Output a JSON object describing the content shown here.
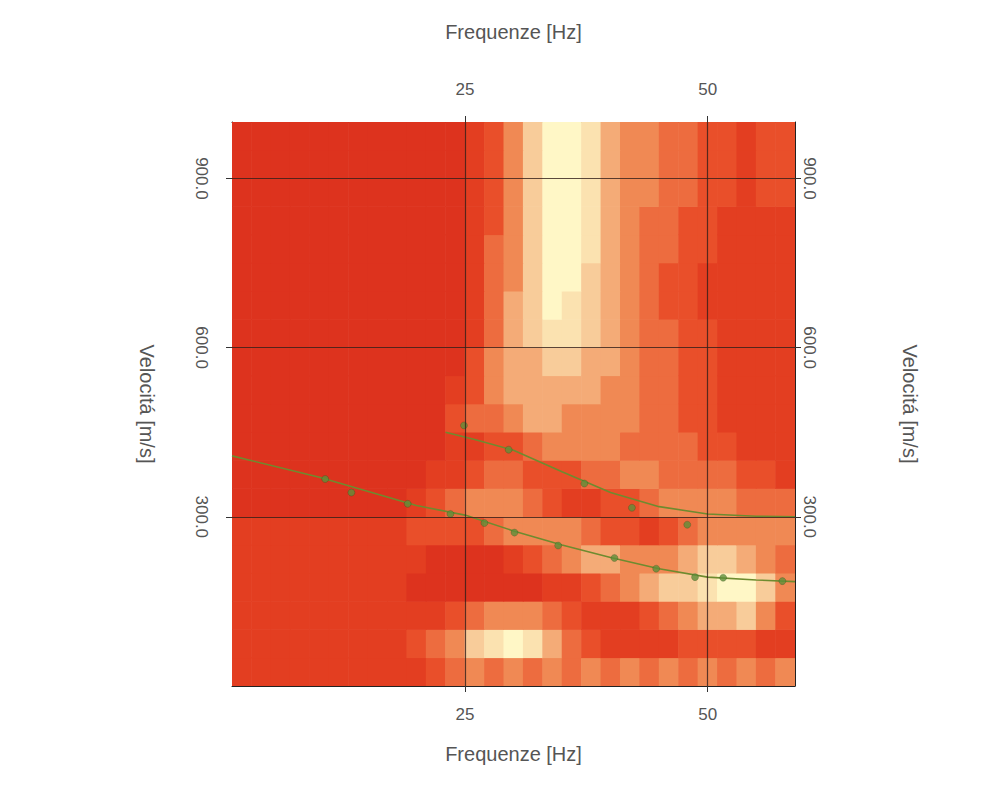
{
  "chart_data": {
    "type": "heatmap",
    "x_label": "Frequenze [Hz]",
    "y_label": "Velocitá [m/s]",
    "xlim": [
      1,
      59
    ],
    "ylim": [
      0,
      1000
    ],
    "xticks": [
      25,
      50
    ],
    "yticks": [
      {
        "value": 300,
        "label": "300.0"
      },
      {
        "value": 600,
        "label": "600.0"
      },
      {
        "value": 900,
        "label": "900.0"
      }
    ],
    "grid": true,
    "heatmap": {
      "x_edges": [
        1,
        3,
        5,
        7,
        9,
        11,
        13,
        15,
        17,
        19,
        21,
        23,
        25,
        27,
        29,
        31,
        33,
        35,
        37,
        39,
        41,
        43,
        45,
        47,
        49,
        51,
        53,
        55,
        57,
        59
      ],
      "y_edges": [
        0,
        50,
        100,
        150,
        200,
        250,
        300,
        350,
        400,
        450,
        500,
        550,
        600,
        650,
        700,
        750,
        800,
        850,
        900,
        950,
        1000
      ],
      "zlim": [
        0,
        9
      ],
      "cells": [
        [
          2,
          2,
          2,
          2,
          2,
          2,
          2,
          2,
          2,
          2,
          3,
          4,
          5,
          4,
          5,
          4,
          5,
          4,
          5,
          4,
          5,
          4,
          5,
          4,
          5,
          4,
          5,
          4,
          5
        ],
        [
          2,
          2,
          2,
          2,
          2,
          2,
          2,
          2,
          2,
          3,
          4,
          5,
          7,
          8,
          9,
          8,
          6,
          4,
          3,
          2,
          2,
          2,
          2,
          3,
          3,
          3,
          3,
          2,
          2
        ],
        [
          2,
          2,
          2,
          2,
          2,
          2,
          2,
          2,
          2,
          2,
          2,
          3,
          4,
          5,
          5,
          5,
          4,
          3,
          2,
          2,
          2,
          3,
          4,
          5,
          6,
          6,
          7,
          5,
          3
        ],
        [
          2,
          2,
          2,
          2,
          2,
          2,
          2,
          2,
          2,
          1,
          1,
          1,
          1,
          1,
          1,
          1,
          2,
          2,
          3,
          4,
          5,
          6,
          7,
          7,
          8,
          9,
          9,
          7,
          5
        ],
        [
          2,
          2,
          2,
          2,
          2,
          2,
          2,
          2,
          2,
          2,
          1,
          1,
          1,
          1,
          2,
          3,
          4,
          5,
          6,
          6,
          5,
          5,
          5,
          6,
          7,
          7,
          6,
          5,
          4
        ],
        [
          2,
          2,
          2,
          2,
          2,
          2,
          2,
          2,
          2,
          3,
          3,
          3,
          3,
          4,
          5,
          5,
          5,
          5,
          4,
          3,
          3,
          2,
          3,
          4,
          5,
          5,
          5,
          5,
          5
        ],
        [
          1,
          1,
          1,
          1,
          1,
          1,
          1,
          1,
          1,
          2,
          3,
          4,
          5,
          5,
          5,
          4,
          3,
          2,
          2,
          3,
          3,
          4,
          5,
          5,
          5,
          5,
          4,
          4,
          4
        ],
        [
          1,
          1,
          1,
          1,
          1,
          1,
          1,
          1,
          1,
          1,
          2,
          2,
          3,
          4,
          4,
          3,
          3,
          3,
          4,
          4,
          5,
          5,
          4,
          4,
          4,
          4,
          3,
          3,
          2
        ],
        [
          1,
          1,
          1,
          1,
          1,
          1,
          1,
          1,
          1,
          1,
          1,
          2,
          2,
          3,
          3,
          4,
          5,
          5,
          5,
          5,
          4,
          4,
          4,
          4,
          3,
          3,
          2,
          2,
          2
        ],
        [
          1,
          1,
          1,
          1,
          1,
          1,
          1,
          1,
          1,
          1,
          1,
          3,
          4,
          4,
          5,
          6,
          6,
          5,
          5,
          5,
          5,
          4,
          4,
          3,
          3,
          2,
          2,
          2,
          2
        ],
        [
          1,
          1,
          1,
          1,
          1,
          1,
          1,
          1,
          1,
          1,
          1,
          2,
          3,
          5,
          6,
          6,
          6,
          6,
          6,
          5,
          5,
          4,
          4,
          3,
          3,
          2,
          2,
          2,
          2
        ],
        [
          1,
          1,
          1,
          1,
          1,
          1,
          1,
          1,
          1,
          1,
          1,
          1,
          3,
          5,
          6,
          6,
          7,
          7,
          6,
          6,
          5,
          4,
          4,
          3,
          3,
          2,
          2,
          2,
          2
        ],
        [
          1,
          1,
          1,
          1,
          1,
          1,
          1,
          1,
          1,
          1,
          1,
          1,
          2,
          4,
          6,
          7,
          8,
          8,
          7,
          6,
          5,
          4,
          4,
          3,
          3,
          2,
          2,
          2,
          2
        ],
        [
          1,
          1,
          1,
          1,
          1,
          1,
          1,
          1,
          1,
          1,
          1,
          1,
          2,
          4,
          6,
          7,
          9,
          8,
          7,
          6,
          5,
          4,
          3,
          3,
          2,
          2,
          2,
          2,
          2
        ],
        [
          1,
          1,
          1,
          1,
          1,
          1,
          1,
          1,
          1,
          1,
          1,
          1,
          2,
          4,
          5,
          7,
          9,
          9,
          7,
          6,
          5,
          4,
          3,
          3,
          2,
          2,
          2,
          2,
          2
        ],
        [
          1,
          1,
          1,
          1,
          1,
          1,
          1,
          1,
          1,
          1,
          1,
          1,
          2,
          4,
          5,
          7,
          9,
          9,
          8,
          6,
          5,
          4,
          4,
          3,
          3,
          2,
          2,
          2,
          2
        ],
        [
          1,
          1,
          1,
          1,
          1,
          1,
          1,
          1,
          1,
          1,
          1,
          1,
          2,
          3,
          5,
          7,
          9,
          9,
          8,
          6,
          5,
          4,
          4,
          3,
          3,
          2,
          2,
          2,
          2
        ],
        [
          1,
          1,
          1,
          1,
          1,
          1,
          1,
          1,
          1,
          1,
          1,
          1,
          2,
          3,
          5,
          7,
          9,
          9,
          8,
          6,
          5,
          5,
          4,
          4,
          3,
          3,
          2,
          3,
          3
        ],
        [
          1,
          1,
          1,
          1,
          1,
          1,
          1,
          1,
          1,
          1,
          1,
          1,
          2,
          3,
          5,
          7,
          9,
          9,
          8,
          6,
          5,
          5,
          4,
          4,
          3,
          3,
          2,
          3,
          3
        ],
        [
          1,
          1,
          1,
          1,
          1,
          1,
          1,
          1,
          1,
          1,
          1,
          1,
          2,
          3,
          5,
          7,
          9,
          9,
          8,
          6,
          5,
          5,
          4,
          4,
          3,
          3,
          2,
          3,
          3
        ]
      ]
    },
    "series": [
      {
        "type": "line",
        "color": "#6e8b2f",
        "line_style": "solid",
        "x": [
          1,
          10,
          20,
          25,
          30,
          35,
          40,
          45,
          50,
          55,
          59
        ],
        "values": [
          408,
          370,
          320,
          303,
          275,
          250,
          228,
          208,
          193,
          188,
          185
        ]
      },
      {
        "type": "line",
        "color": "#6e8b2f",
        "line_style": "solid",
        "x": [
          23,
          26,
          30,
          35,
          40,
          45,
          50,
          55,
          59
        ],
        "values": [
          450,
          437,
          418,
          380,
          343,
          318,
          305,
          301,
          300
        ]
      },
      {
        "type": "scatter",
        "color": "#5f8f3a",
        "marker": "circle",
        "x": [
          10.6,
          13.3,
          19.1,
          23.5,
          27,
          30.1,
          34.6,
          40.4,
          44.7,
          48.7,
          51.6,
          57.7
        ],
        "values": [
          367,
          343,
          323,
          305,
          289,
          272,
          249,
          227,
          208,
          193,
          192,
          186
        ]
      },
      {
        "type": "scatter",
        "color": "#5f8f3a",
        "marker": "circle",
        "x": [
          24.9,
          29.5,
          37.3,
          42.2,
          47.9
        ],
        "values": [
          462,
          419,
          359,
          316,
          286
        ]
      }
    ]
  }
}
